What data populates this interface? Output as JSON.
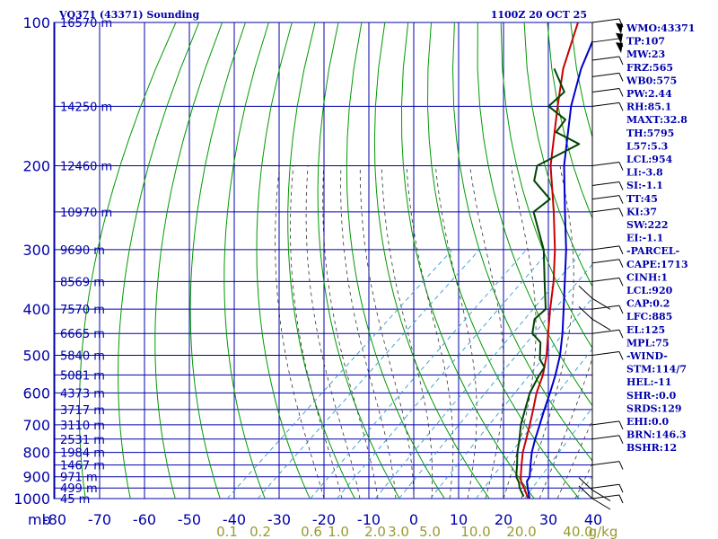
{
  "chart_data": {
    "type": "line",
    "title": "VQ371 (43371) Sounding",
    "timestamp": "1100Z 20 OCT 25",
    "xlabel_prefix": "mb",
    "xlim": [
      -80,
      40
    ],
    "ylim": [
      1000,
      100
    ],
    "y_scale": "log-pressure (skew-T)",
    "x_ticks": [
      -80,
      -70,
      -60,
      -50,
      -40,
      -30,
      -20,
      -10,
      0,
      10,
      20,
      30,
      40
    ],
    "pressure_ticks": [
      100,
      200,
      300,
      400,
      500,
      600,
      700,
      800,
      900,
      1000
    ],
    "height_labels": [
      {
        "p": 100,
        "label": "16570 m"
      },
      {
        "p": 150,
        "label": "14250 m"
      },
      {
        "p": 200,
        "label": "12460 m"
      },
      {
        "p": 250,
        "label": "10970 m"
      },
      {
        "p": 300,
        "label": "9690 m"
      },
      {
        "p": 350,
        "label": "8569 m"
      },
      {
        "p": 400,
        "label": "7570 m"
      },
      {
        "p": 450,
        "label": "6665 m"
      },
      {
        "p": 500,
        "label": "5840 m"
      },
      {
        "p": 550,
        "label": "5081 m"
      },
      {
        "p": 600,
        "label": "4373 m"
      },
      {
        "p": 650,
        "label": "3717 m"
      },
      {
        "p": 700,
        "label": "3110 m"
      },
      {
        "p": 750,
        "label": "2531 m"
      },
      {
        "p": 800,
        "label": "1984 m"
      },
      {
        "p": 850,
        "label": "1467 m"
      },
      {
        "p": 900,
        "label": "971 m"
      },
      {
        "p": 950,
        "label": "499 m"
      },
      {
        "p": 1000,
        "label": "45 m"
      }
    ],
    "mixing_ratio_labels": [
      "0.1",
      "0.2",
      "0.6",
      "1.0",
      "2.0",
      "3.0",
      "5.0",
      "10.0",
      "20.0",
      "40.0",
      "g/kg"
    ],
    "series": [
      {
        "name": "Temperature",
        "color": "#c80000",
        "points": [
          [
            1000,
            25.5
          ],
          [
            950,
            22
          ],
          [
            925,
            20
          ],
          [
            900,
            18.5
          ],
          [
            850,
            15.8
          ],
          [
            800,
            13
          ],
          [
            750,
            10.5
          ],
          [
            700,
            7.8
          ],
          [
            650,
            4.8
          ],
          [
            600,
            1.5
          ],
          [
            550,
            -1.5
          ],
          [
            500,
            -5.5
          ],
          [
            450,
            -10.5
          ],
          [
            400,
            -16
          ],
          [
            350,
            -22
          ],
          [
            300,
            -29.5
          ],
          [
            250,
            -39
          ],
          [
            200,
            -51
          ],
          [
            150,
            -64
          ],
          [
            125,
            -72
          ],
          [
            100,
            -80
          ]
        ]
      },
      {
        "name": "Parcel",
        "color": "#0000cc",
        "points": [
          [
            1000,
            25.8
          ],
          [
            950,
            22.8
          ],
          [
            920,
            21
          ],
          [
            900,
            20.5
          ],
          [
            850,
            17.8
          ],
          [
            800,
            15
          ],
          [
            750,
            12.5
          ],
          [
            700,
            10
          ],
          [
            650,
            7.3
          ],
          [
            600,
            4.5
          ],
          [
            550,
            1.3
          ],
          [
            500,
            -2.5
          ],
          [
            450,
            -7.3
          ],
          [
            400,
            -13
          ],
          [
            350,
            -19.5
          ],
          [
            300,
            -27
          ],
          [
            250,
            -36.5
          ],
          [
            200,
            -48
          ],
          [
            150,
            -61
          ],
          [
            125,
            -68
          ],
          [
            100,
            -75
          ]
        ]
      },
      {
        "name": "Dewpoint",
        "color": "#004400",
        "points": [
          [
            990,
            24
          ],
          [
            950,
            21
          ],
          [
            925,
            19.5
          ],
          [
            900,
            17.5
          ],
          [
            850,
            14.8
          ],
          [
            800,
            11.8
          ],
          [
            750,
            9
          ],
          [
            700,
            5.8
          ],
          [
            650,
            3
          ],
          [
            600,
            0
          ],
          [
            550,
            -2.3
          ],
          [
            530,
            -3
          ],
          [
            510,
            -6
          ],
          [
            470,
            -10
          ],
          [
            450,
            -14
          ],
          [
            420,
            -17
          ],
          [
            400,
            -17
          ],
          [
            350,
            -24
          ],
          [
            300,
            -32
          ],
          [
            250,
            -43.5
          ],
          [
            235,
            -43
          ],
          [
            215,
            -51
          ],
          [
            200,
            -54
          ],
          [
            180,
            -50
          ],
          [
            170,
            -58
          ],
          [
            160,
            -59
          ],
          [
            150,
            -66
          ],
          [
            140,
            -66
          ],
          [
            125,
            -74
          ]
        ]
      }
    ]
  },
  "indices": [
    "WMO:43371",
    "TP:107",
    "MW:23",
    "FRZ:565",
    "WB0:575",
    "PW:2.44",
    "RH:85.1",
    "MAXT:32.8",
    "TH:5795",
    "L57:5.3",
    "LCL:954",
    "LI:-3.8",
    "SI:-1.1",
    "TT:45",
    "KI:37",
    "SW:222",
    "EI:-1.1",
    "-PARCEL-",
    "CAPE:1713",
    "CINH:1",
    "LCL:920",
    "CAP:0.2",
    "LFC:885",
    "EL:125",
    "MPL:75",
    "-WIND-",
    "STM:114/7",
    "HEL:-11",
    "SHR-:0.0",
    "SRDS:129",
    "EHI:0.0",
    "BRN:146.3",
    "BSHR:12"
  ],
  "colors": {
    "grid": "#0000aa",
    "dry_adiabat": "#009900",
    "moist_adiabat": "#333333",
    "mixing_ratio": "#3399cc",
    "text": "#0000aa"
  }
}
